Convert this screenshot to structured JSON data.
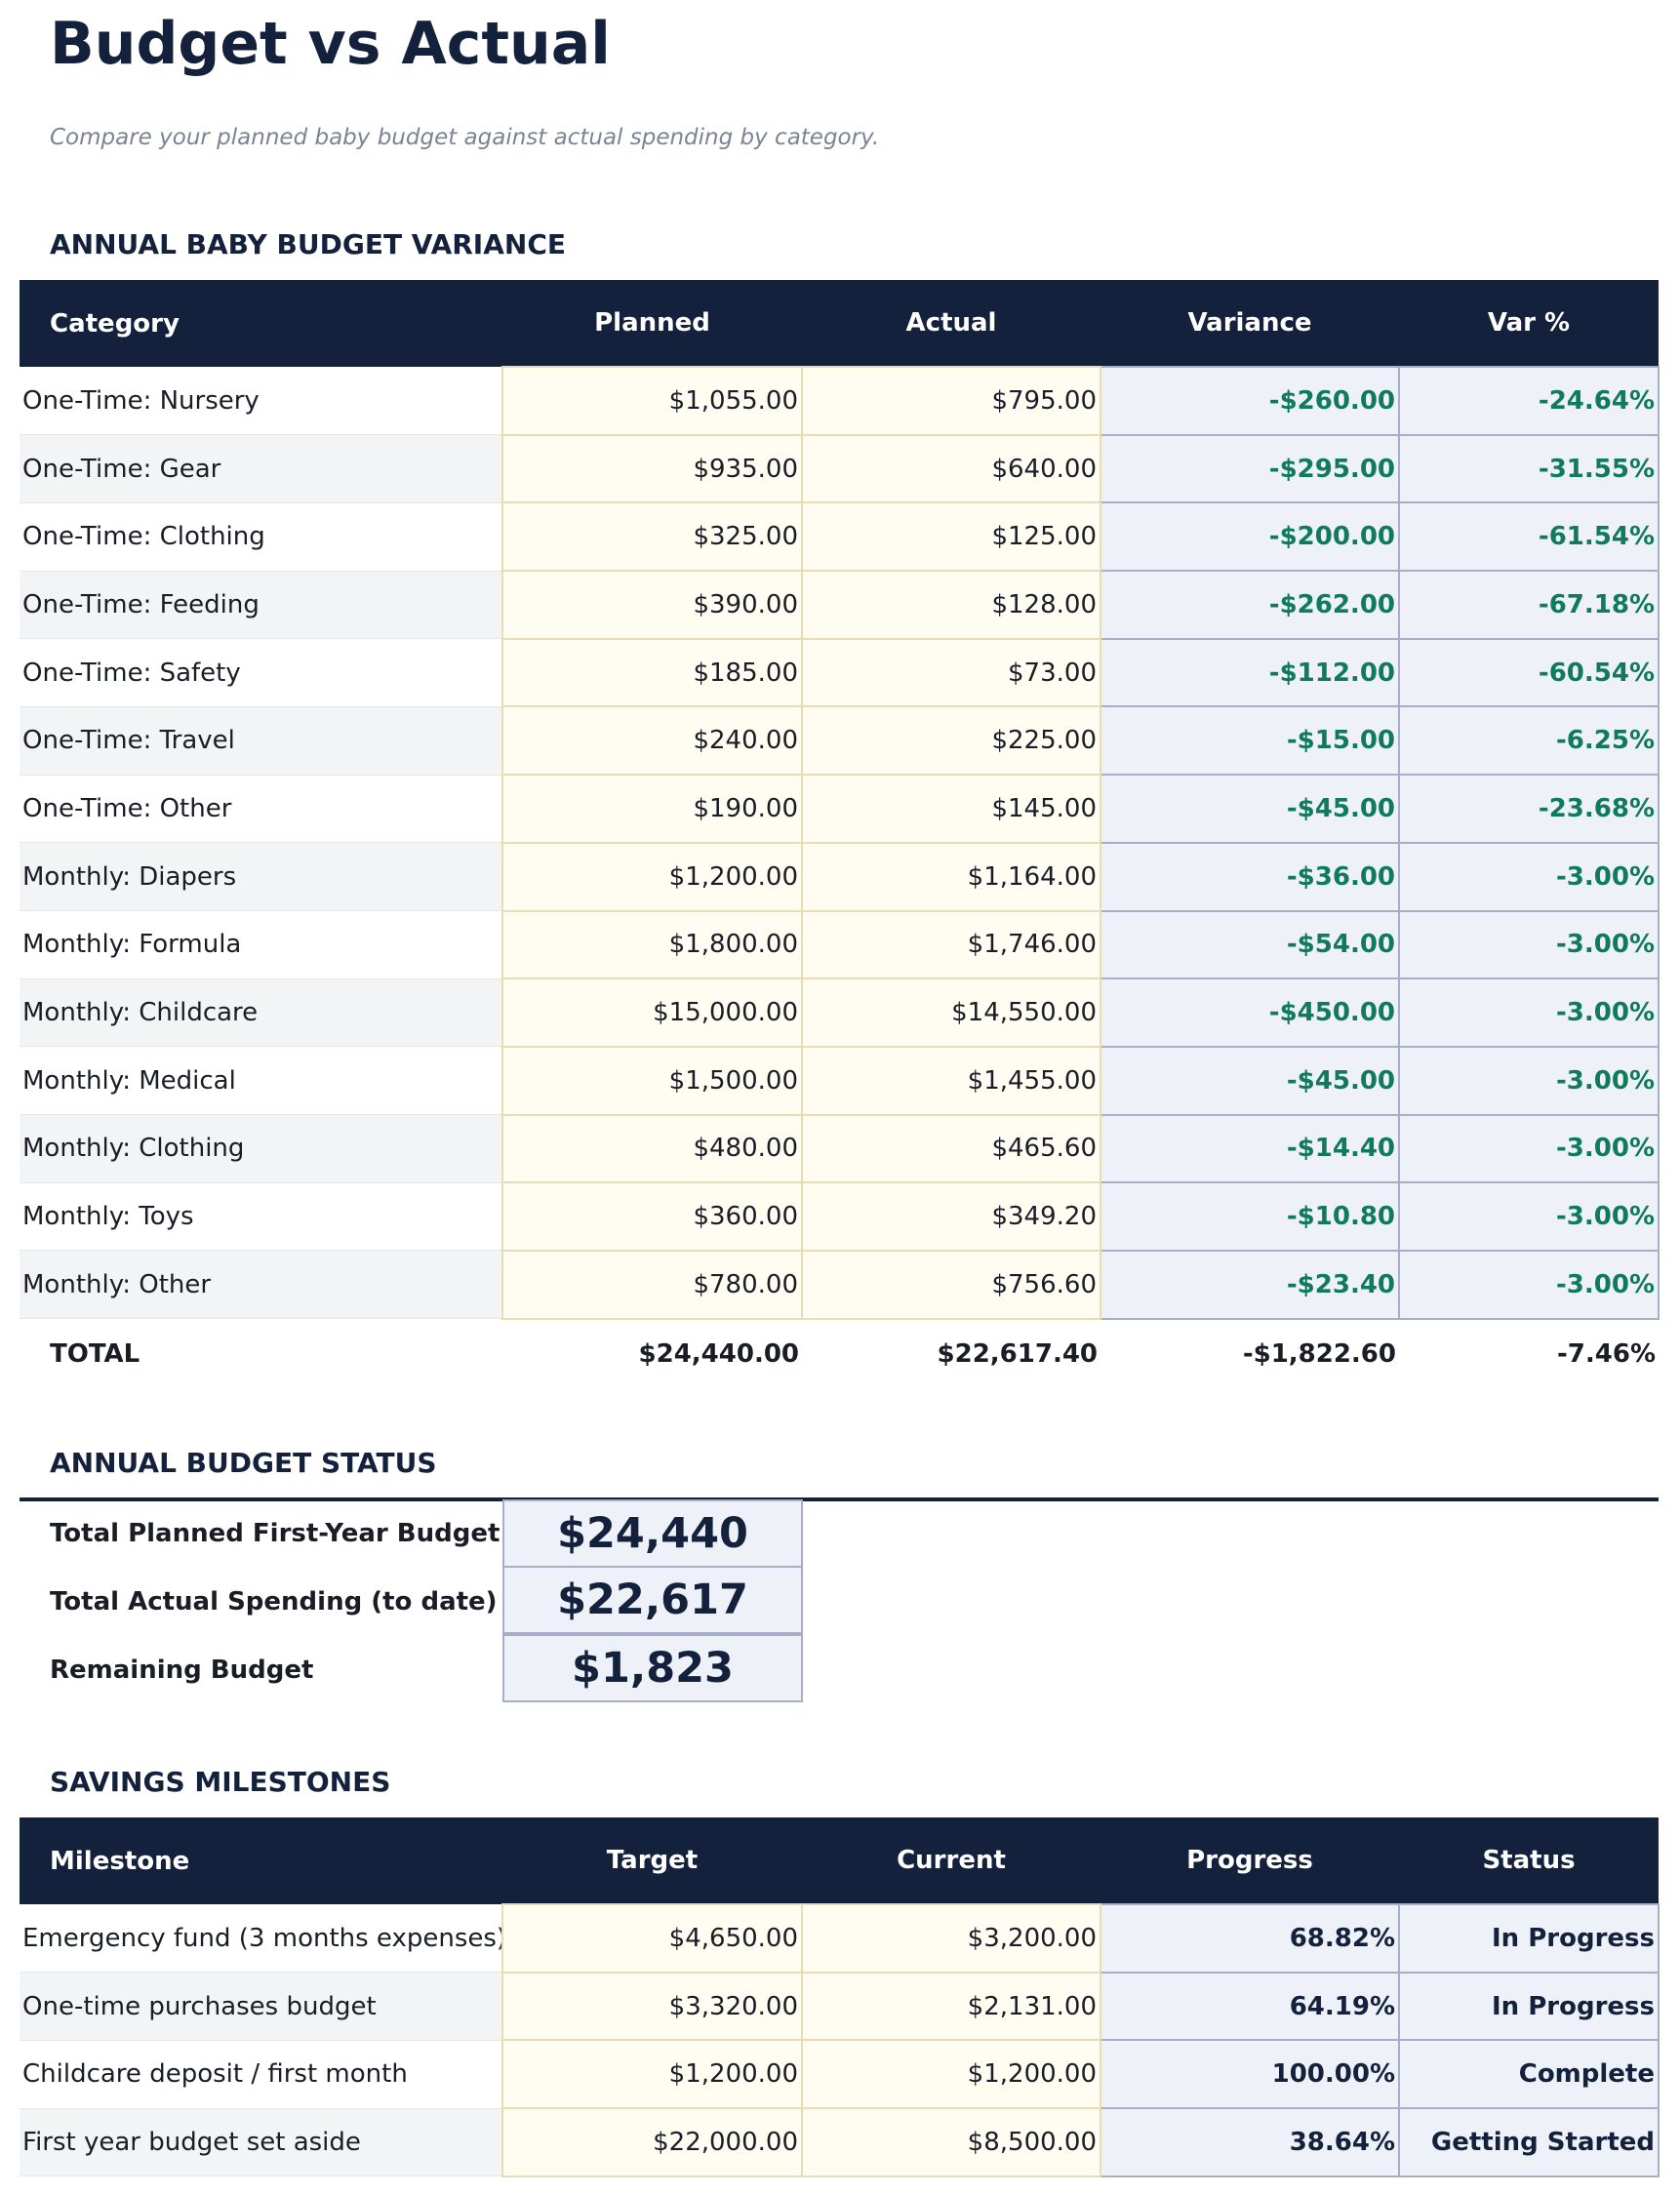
{
  "title": "Budget vs Actual",
  "subtitle": "Compare your planned baby budget against actual spending by category.",
  "variance": {
    "heading": "ANNUAL BABY BUDGET VARIANCE",
    "columns": [
      "Category",
      "Planned",
      "Actual",
      "Variance",
      "Var %"
    ],
    "rows": [
      [
        "One-Time: Nursery",
        "$1,055.00",
        "$795.00",
        "-$260.00",
        "-24.64%"
      ],
      [
        "One-Time: Gear",
        "$935.00",
        "$640.00",
        "-$295.00",
        "-31.55%"
      ],
      [
        "One-Time: Clothing",
        "$325.00",
        "$125.00",
        "-$200.00",
        "-61.54%"
      ],
      [
        "One-Time: Feeding",
        "$390.00",
        "$128.00",
        "-$262.00",
        "-67.18%"
      ],
      [
        "One-Time: Safety",
        "$185.00",
        "$73.00",
        "-$112.00",
        "-60.54%"
      ],
      [
        "One-Time: Travel",
        "$240.00",
        "$225.00",
        "-$15.00",
        "-6.25%"
      ],
      [
        "One-Time: Other",
        "$190.00",
        "$145.00",
        "-$45.00",
        "-23.68%"
      ],
      [
        "Monthly: Diapers",
        "$1,200.00",
        "$1,164.00",
        "-$36.00",
        "-3.00%"
      ],
      [
        "Monthly: Formula",
        "$1,800.00",
        "$1,746.00",
        "-$54.00",
        "-3.00%"
      ],
      [
        "Monthly: Childcare",
        "$15,000.00",
        "$14,550.00",
        "-$450.00",
        "-3.00%"
      ],
      [
        "Monthly: Medical",
        "$1,500.00",
        "$1,455.00",
        "-$45.00",
        "-3.00%"
      ],
      [
        "Monthly: Clothing",
        "$480.00",
        "$465.60",
        "-$14.40",
        "-3.00%"
      ],
      [
        "Monthly: Toys",
        "$360.00",
        "$349.20",
        "-$10.80",
        "-3.00%"
      ],
      [
        "Monthly: Other",
        "$780.00",
        "$756.60",
        "-$23.40",
        "-3.00%"
      ]
    ],
    "total": [
      "TOTAL",
      "$24,440.00",
      "$22,617.40",
      "-$1,822.60",
      "-7.46%"
    ]
  },
  "status": {
    "heading": "ANNUAL BUDGET STATUS",
    "items": [
      {
        "label": "Total Planned First-Year Budget",
        "value": "$24,440"
      },
      {
        "label": "Total Actual Spending (to date)",
        "value": "$22,617"
      },
      {
        "label": "Remaining Budget",
        "value": "$1,823"
      }
    ]
  },
  "milestones": {
    "heading": "SAVINGS MILESTONES",
    "columns": [
      "Milestone",
      "Target",
      "Current",
      "Progress",
      "Status"
    ],
    "rows": [
      [
        "Emergency fund (3 months expenses)",
        "$4,650.00",
        "$3,200.00",
        "68.82%",
        "In Progress"
      ],
      [
        "One-time purchases budget",
        "$3,320.00",
        "$2,131.00",
        "64.19%",
        "In Progress"
      ],
      [
        "Childcare deposit / first month",
        "$1,200.00",
        "$1,200.00",
        "100.00%",
        "Complete"
      ],
      [
        "First year budget set aside",
        "$22,000.00",
        "$8,500.00",
        "38.64%",
        "Getting Started"
      ]
    ]
  },
  "colors": {
    "navy": "#14213d",
    "positive_variance": "#0f7b5a"
  }
}
